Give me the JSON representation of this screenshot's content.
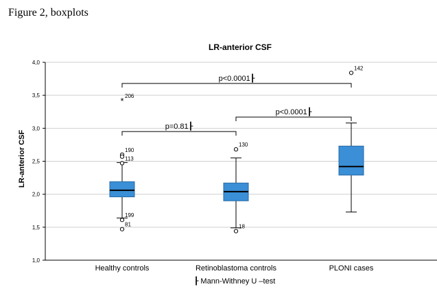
{
  "caption": "Figure 2, boxplots",
  "chart_data": {
    "type": "boxplot",
    "title": "LR-anterior CSF",
    "ylabel": "LR-anterior CSF",
    "xlabel": "┠ Mann-Withney U –test",
    "ylim": [
      1.0,
      4.0
    ],
    "yticks": [
      "1,0",
      "1,5",
      "2,0",
      "2,5",
      "3,0",
      "3,5",
      "4,0"
    ],
    "ytick_values": [
      1.0,
      1.5,
      2.0,
      2.5,
      3.0,
      3.5,
      4.0
    ],
    "grid": true,
    "groups": [
      {
        "name": "Healthy controls",
        "whisker_low": 1.64,
        "q1": 1.96,
        "median": 2.06,
        "q3": 2.19,
        "whisker_high": 2.48,
        "outliers": [
          {
            "value": 3.42,
            "marker": "*",
            "label": "206"
          },
          {
            "value": 2.6,
            "marker": "o",
            "label": "190"
          },
          {
            "value": 2.57,
            "marker": "o",
            "label": ""
          },
          {
            "value": 2.47,
            "marker": "o",
            "label": "113"
          },
          {
            "value": 1.61,
            "marker": "o",
            "label": "199"
          },
          {
            "value": 1.47,
            "marker": "o",
            "label": "81"
          }
        ]
      },
      {
        "name": "Retinoblastoma controls",
        "whisker_low": 1.49,
        "q1": 1.9,
        "median": 2.04,
        "q3": 2.17,
        "whisker_high": 2.55,
        "outliers": [
          {
            "value": 2.68,
            "marker": "o",
            "label": "130"
          },
          {
            "value": 1.44,
            "marker": "o",
            "label": "18"
          }
        ]
      },
      {
        "name": "PLONI cases",
        "whisker_low": 1.73,
        "q1": 2.29,
        "median": 2.42,
        "q3": 2.73,
        "whisker_high": 3.08,
        "outliers": [
          {
            "value": 3.84,
            "marker": "o",
            "label": "142"
          }
        ]
      }
    ],
    "comparisons": [
      {
        "from": 0,
        "to": 2,
        "y": 3.68,
        "label": "p<0.0001┠"
      },
      {
        "from": 1,
        "to": 2,
        "y": 3.17,
        "label": "p<0.0001┠"
      },
      {
        "from": 0,
        "to": 1,
        "y": 2.95,
        "label": "p=0.81┠"
      }
    ],
    "colors": {
      "box_fill": "#3a8fd6",
      "box_edge": "#2a6aa8",
      "grid": "#cfcfcf",
      "line": "#000000"
    }
  }
}
